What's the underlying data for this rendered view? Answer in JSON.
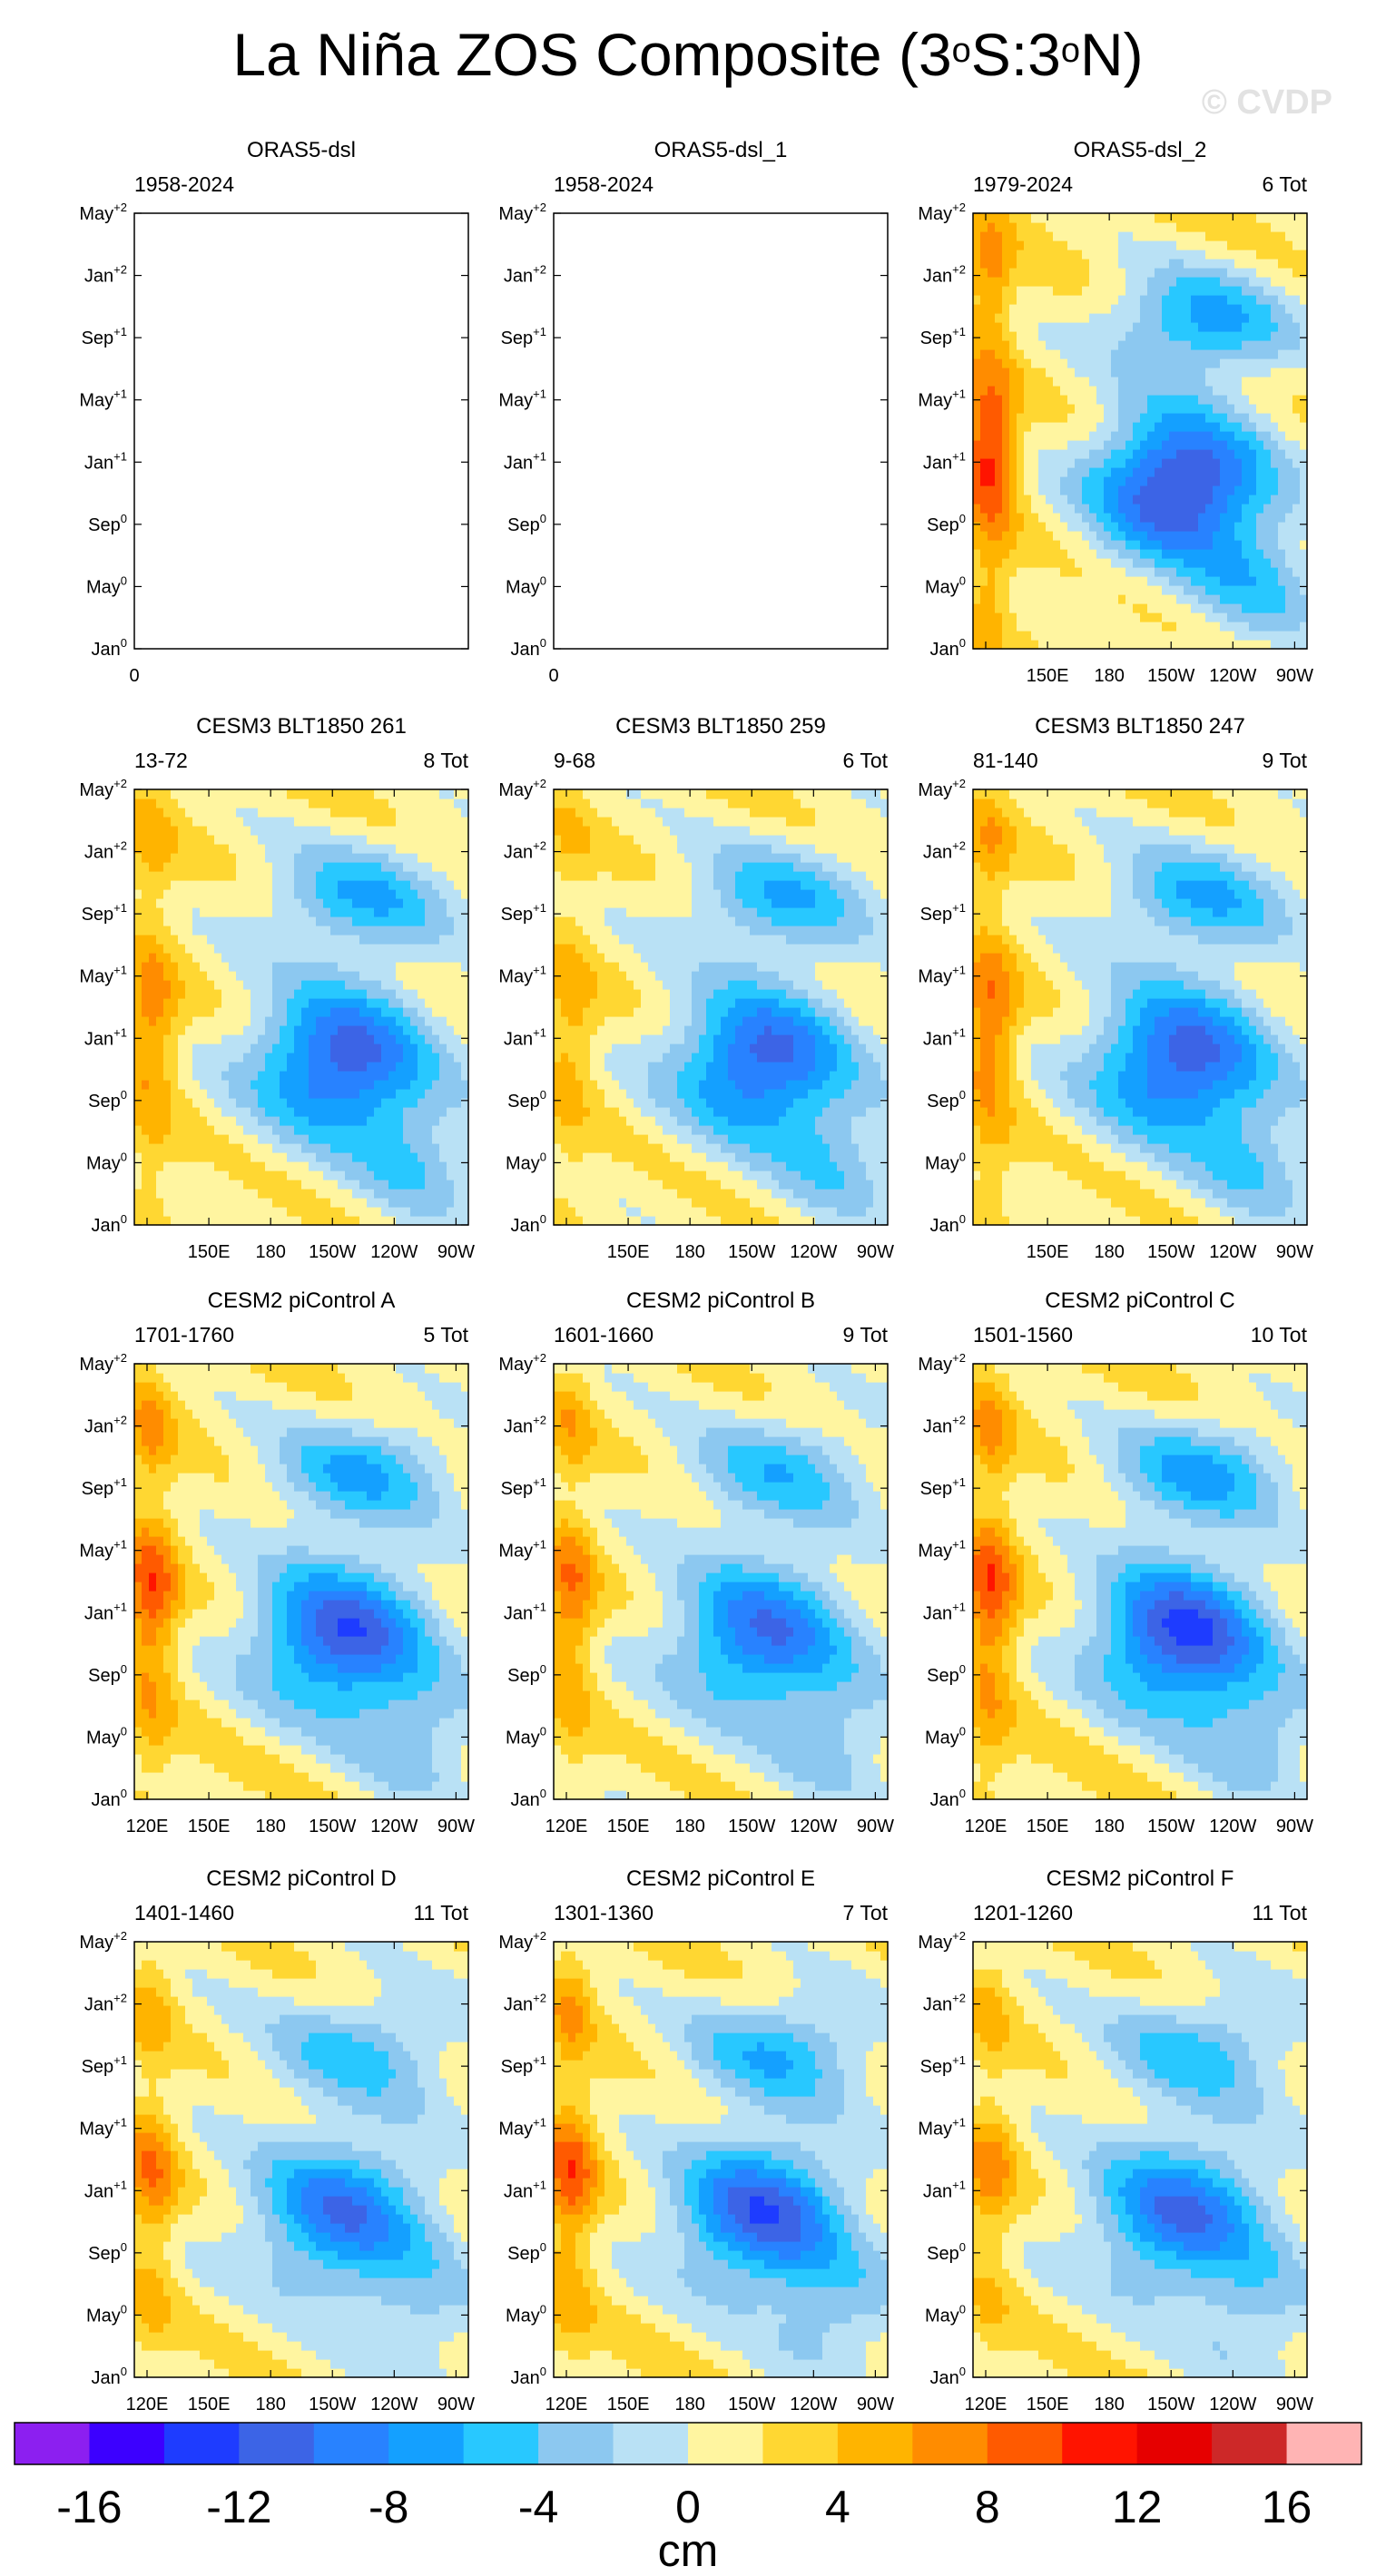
{
  "title": {
    "pre": "La Niña ZOS Composite (3",
    "deg1": "o",
    "mid": "S:3",
    "deg2": "o",
    "post": "N)"
  },
  "watermark": "© CVDP",
  "chart_data": {
    "type": "heatmap",
    "description_axes": {
      "x": "longitude",
      "y": "composite month"
    },
    "ytick_labels": [
      {
        "base": "Jan",
        "sup": "0"
      },
      {
        "base": "May",
        "sup": "0"
      },
      {
        "base": "Sep",
        "sup": "0"
      },
      {
        "base": "Jan",
        "sup": "+1"
      },
      {
        "base": "May",
        "sup": "+1"
      },
      {
        "base": "Sep",
        "sup": "+1"
      },
      {
        "base": "Jan",
        "sup": "+2"
      },
      {
        "base": "May",
        "sup": "+2"
      }
    ],
    "xtick_labels": [
      "120E",
      "150E",
      "180",
      "150W",
      "120W",
      "90W"
    ],
    "empty_xtick_label": "0",
    "panels": [
      {
        "title": "ORAS5-dsl",
        "left": "1958-2024",
        "right": "",
        "empty": true,
        "xticks_from": 99
      },
      {
        "title": "ORAS5-dsl_1",
        "left": "1958-2024",
        "right": "",
        "empty": true,
        "xticks_from": 99
      },
      {
        "title": "ORAS5-dsl_2",
        "left": "1979-2024",
        "right": "6 Tot",
        "empty": false,
        "xticks_from": 1,
        "min": -15,
        "west_max": 9.5,
        "west_sign": 1
      },
      {
        "title": "CESM3 BLT1850 261",
        "left": "13-72",
        "right": "8 Tot",
        "empty": false,
        "xticks_from": 1,
        "min": -13,
        "west_max": 6,
        "west_sign": 2
      },
      {
        "title": "CESM3 BLT1850 259",
        "left": "9-68",
        "right": "6 Tot",
        "empty": false,
        "xticks_from": 1,
        "min": -12.5,
        "west_max": 4,
        "west_sign": 2
      },
      {
        "title": "CESM3 BLT1850 247",
        "left": "81-140",
        "right": "9 Tot",
        "empty": false,
        "xticks_from": 1,
        "min": -13,
        "west_max": 7,
        "west_sign": 2
      },
      {
        "title": "CESM2 piControl A",
        "left": "1701-1760",
        "right": "5 Tot",
        "empty": false,
        "xticks_from": 0,
        "min": -13,
        "west_max": 8,
        "west_sign": 3
      },
      {
        "title": "CESM2 piControl B",
        "left": "1601-1660",
        "right": "9 Tot",
        "empty": false,
        "xticks_from": 0,
        "min": -11,
        "west_max": 6.5,
        "west_sign": 3
      },
      {
        "title": "CESM2 piControl C",
        "left": "1501-1560",
        "right": "10 Tot",
        "empty": false,
        "xticks_from": 0,
        "min": -14,
        "west_max": 8,
        "west_sign": 3
      },
      {
        "title": "CESM2 piControl D",
        "left": "1401-1460",
        "right": "11 Tot",
        "empty": false,
        "xticks_from": 0,
        "min": -10.5,
        "west_max": 6,
        "west_sign": 4
      },
      {
        "title": "CESM2 piControl E",
        "left": "1301-1360",
        "right": "7 Tot",
        "empty": false,
        "xticks_from": 0,
        "min": -12.5,
        "west_max": 7.5,
        "west_sign": 4
      },
      {
        "title": "CESM2 piControl F",
        "left": "1201-1260",
        "right": "11 Tot",
        "empty": false,
        "xticks_from": 0,
        "min": -11,
        "west_max": 5,
        "west_sign": 4
      }
    ],
    "colorbar": {
      "colors": [
        "#8c1ff0",
        "#3c00ff",
        "#1e3cff",
        "#3c64e6",
        "#2882ff",
        "#14a0ff",
        "#28c8ff",
        "#8cc8f0",
        "#b9e1f5",
        "#fff5a0",
        "#ffd732",
        "#ffb400",
        "#ff8c00",
        "#ff5a00",
        "#ff1400",
        "#e60000",
        "#cd2828",
        "#ffb4b4"
      ],
      "labels": [
        {
          "text": "-16",
          "boundary": 1
        },
        {
          "text": "-12",
          "boundary": 3
        },
        {
          "text": "-8",
          "boundary": 5
        },
        {
          "text": "-4",
          "boundary": 7
        },
        {
          "text": "0",
          "boundary": 9
        },
        {
          "text": "4",
          "boundary": 11
        },
        {
          "text": "8",
          "boundary": 13
        },
        {
          "text": "12",
          "boundary": 15
        },
        {
          "text": "16",
          "boundary": 17
        }
      ],
      "units": "cm"
    }
  }
}
